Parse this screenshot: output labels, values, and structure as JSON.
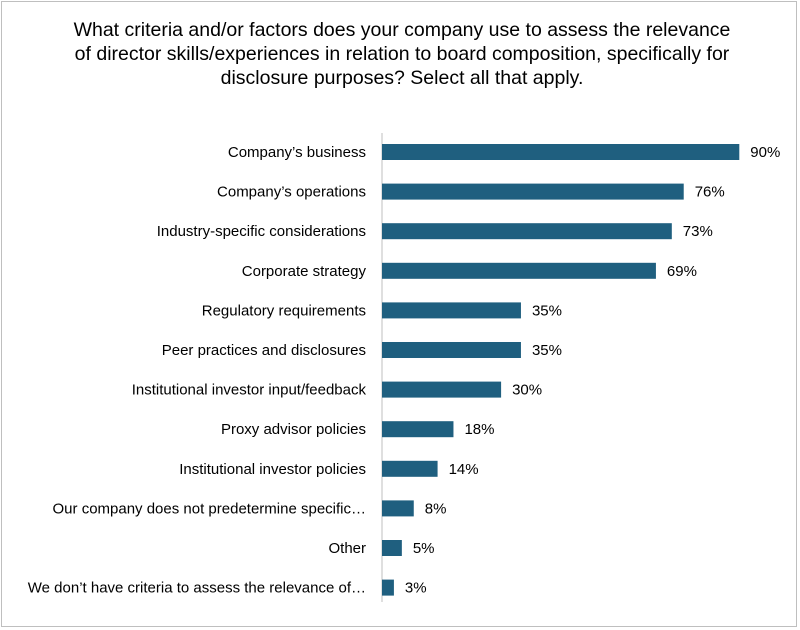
{
  "chart_data": {
    "type": "bar",
    "orientation": "horizontal",
    "title": "What criteria and/or factors does your company use to assess the relevance of director skills/experiences in relation to board composition, specifically for disclosure purposes? Select all that apply.",
    "categories": [
      "Company’s business",
      "Company’s operations",
      "Industry-specific considerations",
      "Corporate strategy",
      "Regulatory requirements",
      "Peer practices and disclosures",
      "Institutional investor input/feedback",
      "Proxy advisor policies",
      "Institutional investor policies",
      "Our company does not predetermine specific…",
      "Other",
      "We don’t have criteria to assess the relevance of…"
    ],
    "values": [
      90,
      76,
      73,
      69,
      35,
      35,
      30,
      18,
      14,
      8,
      5,
      3
    ],
    "value_labels": [
      "90%",
      "76%",
      "73%",
      "69%",
      "35%",
      "35%",
      "30%",
      "18%",
      "14%",
      "8%",
      "5%",
      "3%"
    ],
    "xlim": [
      0,
      100
    ],
    "bar_color": "#1f5f7f",
    "grid": false,
    "legend": "none"
  }
}
